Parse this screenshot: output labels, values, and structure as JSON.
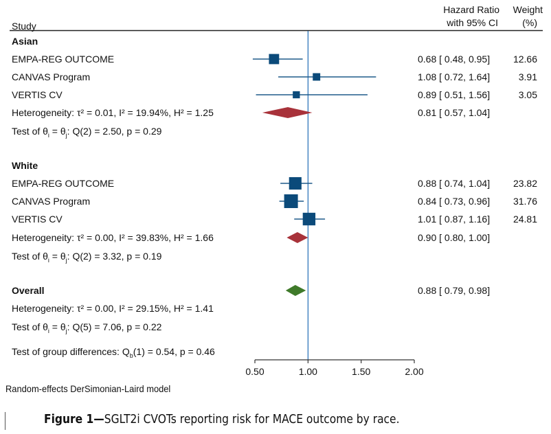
{
  "chart_data": {
    "type": "forest",
    "xscale": "linear",
    "xlim": [
      0.5,
      2.0
    ],
    "xticks": [
      "0.50",
      "1.00",
      "1.50",
      "2.00"
    ],
    "reference_line": 1.0,
    "columns": {
      "study": "Study",
      "hr_line1": "Hazard Ratio",
      "hr_line2": "with 95% CI",
      "weight_line1": "Weight",
      "weight_line2": "(%)"
    },
    "groups": [
      {
        "name": "Asian",
        "studies": [
          {
            "study": "EMPA-REG OUTCOME",
            "hr": 0.68,
            "lo": 0.48,
            "hi": 0.95,
            "label": "0.68 [ 0.48,  0.95]",
            "weight": "12.66"
          },
          {
            "study": "CANVAS Program",
            "hr": 1.08,
            "lo": 0.72,
            "hi": 1.64,
            "label": "1.08 [ 0.72,  1.64]",
            "weight": "3.91"
          },
          {
            "study": "VERTIS CV",
            "hr": 0.89,
            "lo": 0.51,
            "hi": 1.56,
            "label": "0.89 [ 0.51,  1.56]",
            "weight": "3.05"
          }
        ],
        "summary": {
          "hr": 0.81,
          "lo": 0.57,
          "hi": 1.04,
          "label": "0.81 [ 0.57,  1.04]"
        },
        "heterogeneity": "Heterogeneity: τ² = 0.01, I² = 19.94%, H² = 1.25",
        "test": {
          "prefix": "Test of θ",
          "i": "i",
          "mid": " = θ",
          "j": "j",
          "suffix": ": Q(2) = 2.50, p = 0.29"
        }
      },
      {
        "name": "White",
        "studies": [
          {
            "study": "EMPA-REG OUTCOME",
            "hr": 0.88,
            "lo": 0.74,
            "hi": 1.04,
            "label": "0.88 [ 0.74,  1.04]",
            "weight": "23.82"
          },
          {
            "study": "CANVAS Program",
            "hr": 0.84,
            "lo": 0.73,
            "hi": 0.96,
            "label": "0.84 [ 0.73,  0.96]",
            "weight": "31.76"
          },
          {
            "study": "VERTIS CV",
            "hr": 1.01,
            "lo": 0.87,
            "hi": 1.16,
            "label": "1.01 [ 0.87,  1.16]",
            "weight": "24.81"
          }
        ],
        "summary": {
          "hr": 0.9,
          "lo": 0.8,
          "hi": 1.0,
          "label": "0.90 [ 0.80,  1.00]"
        },
        "heterogeneity": "Heterogeneity: τ² = 0.00, I² = 39.83%, H² = 1.66",
        "test": {
          "prefix": "Test of θ",
          "i": "i",
          "mid": " = θ",
          "j": "j",
          "suffix": ": Q(2) = 3.32, p = 0.19"
        }
      }
    ],
    "overall": {
      "name": "Overall",
      "hr": 0.88,
      "lo": 0.79,
      "hi": 0.98,
      "label": "0.88 [ 0.79,  0.98]",
      "heterogeneity": "Heterogeneity: τ² = 0.00, I² = 29.15%, H² = 1.41",
      "test": {
        "prefix": "Test of θ",
        "i": "i",
        "mid": " = θ",
        "j": "j",
        "suffix": ": Q(5) = 7.06, p = 0.22"
      }
    },
    "group_diff": {
      "prefix": "Test of group differences: Q",
      "sub": "b",
      "suffix": "(1) = 0.54, p = 0.46"
    },
    "model_note": "Random-effects DerSimonian-Laird model",
    "colors": {
      "study_marker": "#0b4a7a",
      "ci_line": "#1f5a8a",
      "ref_line": "#1f6bb5",
      "group_diamond": "#a8323a",
      "overall_diamond": "#3f7a2a",
      "axis": "#333333"
    }
  },
  "caption": {
    "figure_label": "Figure 1—",
    "text": "SGLT2i CVOTs reporting risk for MACE outcome by race."
  }
}
